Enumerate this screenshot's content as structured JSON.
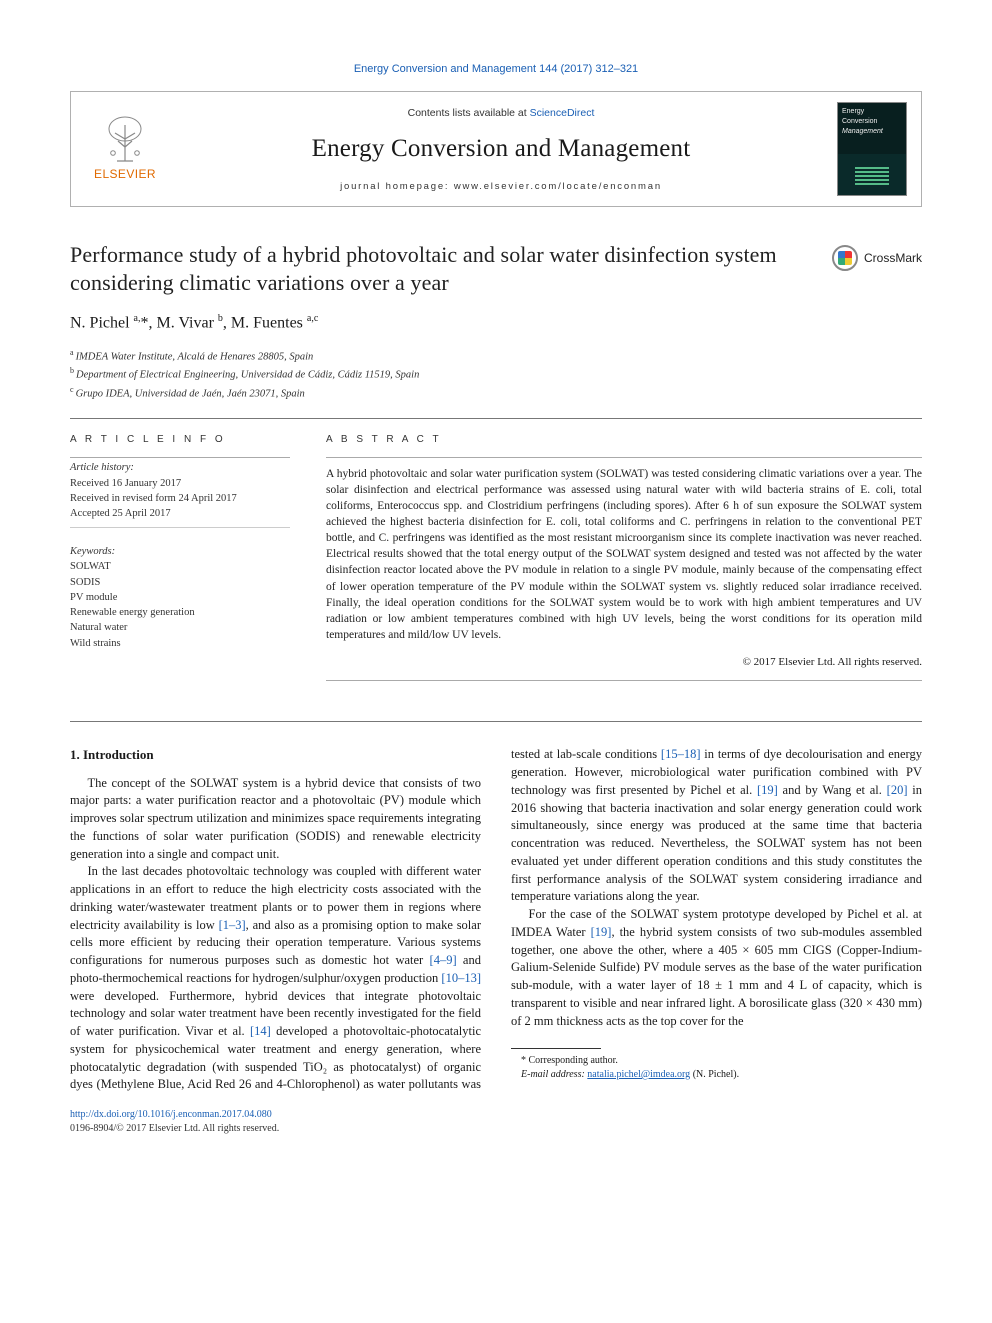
{
  "ref_line_prefix": "Energy Conversion and Management 144 (2017) 312–321",
  "ref_color": "#1a5fb4",
  "contents_prefix": "Contents lists available at ",
  "contents_link": "ScienceDirect",
  "journal_name": "Energy Conversion and Management",
  "journal_name_fontsize": 25,
  "homepage_prefix": "journal homepage: ",
  "homepage_url": "www.elsevier.com/locate/enconman",
  "publisher_name": "ELSEVIER",
  "publisher_color": "#e06a00",
  "cover_label": "Energy\nConversion\nManagement",
  "article_title": "Performance study of a hybrid photovoltaic and solar water disinfection system considering climatic variations over a year",
  "article_title_fontsize": 22,
  "crossmark_label": "CrossMark",
  "authors_html": "N. Pichel <sup>a,</sup>*, M. Vivar <sup>b</sup>, M. Fuentes <sup>a,c</sup>",
  "affils": [
    {
      "sup": "a",
      "text": "IMDEA Water Institute, Alcalá de Henares 28805, Spain"
    },
    {
      "sup": "b",
      "text": "Department of Electrical Engineering, Universidad de Cádiz, Cádiz 11519, Spain"
    },
    {
      "sup": "c",
      "text": "Grupo IDEA, Universidad de Jaén, Jaén 23071, Spain"
    }
  ],
  "article_info_header": "a r t i c l e   i n f o",
  "abstract_header": "a b s t r a c t",
  "history_header": "Article history:",
  "history": [
    "Received 16 January 2017",
    "Received in revised form 24 April 2017",
    "Accepted 25 April 2017"
  ],
  "keywords_header": "Keywords:",
  "keywords": [
    "SOLWAT",
    "SODIS",
    "PV module",
    "Renewable energy generation",
    "Natural water",
    "Wild strains"
  ],
  "abstract": "A hybrid photovoltaic and solar water purification system (SOLWAT) was tested considering climatic variations over a year. The solar disinfection and electrical performance was assessed using natural water with wild bacteria strains of E. coli, total coliforms, Enterococcus spp. and Clostridium perfringens (including spores). After 6 h of sun exposure the SOLWAT system achieved the highest bacteria disinfection for E. coli, total coliforms and C. perfringens in relation to the conventional PET bottle, and C. perfringens was identified as the most resistant microorganism since its complete inactivation was never reached. Electrical results showed that the total energy output of the SOLWAT system designed and tested was not affected by the water disinfection reactor located above the PV module in relation to a single PV module, mainly because of the compensating effect of lower operation temperature of the PV module within the SOLWAT system vs. slightly reduced solar irradiance received. Finally, the ideal operation conditions for the SOLWAT system would be to work with high ambient temperatures and UV radiation or low ambient temperatures combined with high UV levels, being the worst conditions for its operation mild temperatures and mild/low UV levels.",
  "copyright": "© 2017 Elsevier Ltd. All rights reserved.",
  "section1_header": "1. Introduction",
  "para1": "The concept of the SOLWAT system is a hybrid device that consists of two major parts: a water purification reactor and a photovoltaic (PV) module which improves solar spectrum utilization and minimizes space requirements integrating the functions of solar water purification (SODIS) and renewable electricity generation into a single and compact unit.",
  "para2a": "In the last decades photovoltaic technology was coupled with different water applications in an effort to reduce the high electricity costs associated with the drinking water/wastewater treatment plants or to power them in regions where electricity availability is low ",
  "ref_1_3": "[1–3]",
  "para2b": ", and also as a promising option to make solar cells more efficient by reducing their operation temperature. Various systems configurations for numerous purposes such as domestic hot water ",
  "ref_4_9": "[4–9]",
  "para2c": " and photo-thermochemical reactions for hydrogen/sulphur/oxygen production ",
  "ref_10_13": "[10–13]",
  "para2d": " were developed. Furthermore, hybrid devices that integrate photovoltaic technology and solar water treatment have been recently investigated for the field of water purification. Vivar et al. ",
  "ref_14": "[14]",
  "para2e": " developed a photovoltaic-photocatalytic system for physicochemical water treatment and energy generation, where photocatalytic degradation (with suspended TiO₂ as photocatalyst) of organic dyes (Methylene Blue, Acid Red 26 and 4-Chlorophenol) as water pollutants was tested at lab-scale conditions ",
  "ref_15_18": "[15–18]",
  "para2f": " in terms of dye decolourisation and energy generation. However, microbiological water purification combined with PV technology was first presented by Pichel et al. ",
  "ref_19a": "[19]",
  "para2g": " and by Wang et al. ",
  "ref_20": "[20]",
  "para2h": " in 2016 showing that bacteria inactivation and solar energy generation could work simultaneously, since energy was produced at the same time that bacteria concentration was reduced. Nevertheless, the SOLWAT system has not been evaluated yet under different operation conditions and this study constitutes the first performance analysis of the SOLWAT system considering irradiance and temperature variations along the year.",
  "para3a": "For the case of the SOLWAT system prototype developed by Pichel et al. at IMDEA Water ",
  "ref_19b": "[19]",
  "para3b": ", the hybrid system consists of two sub-modules assembled together, one above the other, where a 405 × 605 mm CIGS (Copper-Indium-Galium-Selenide Sulfide) PV module serves as the base of the water purification sub-module, with a water layer of 18 ± 1 mm and 4 L of capacity, which is transparent to visible and near infrared light. A borosilicate glass (320 × 430 mm) of 2 mm thickness acts as the top cover for the",
  "corr_author": "* Corresponding author.",
  "email_label": "E-mail address: ",
  "email": "natalia.pichel@imdea.org",
  "email_suffix": " (N. Pichel).",
  "doi_label": "http://dx.doi.org/10.1016/j.enconman.2017.04.080",
  "issn_line": "0196-8904/© 2017 Elsevier Ltd. All rights reserved.",
  "link_color": "#1a5fb4",
  "text_color": "#1a1a1a",
  "body_fontsize": 12.5
}
